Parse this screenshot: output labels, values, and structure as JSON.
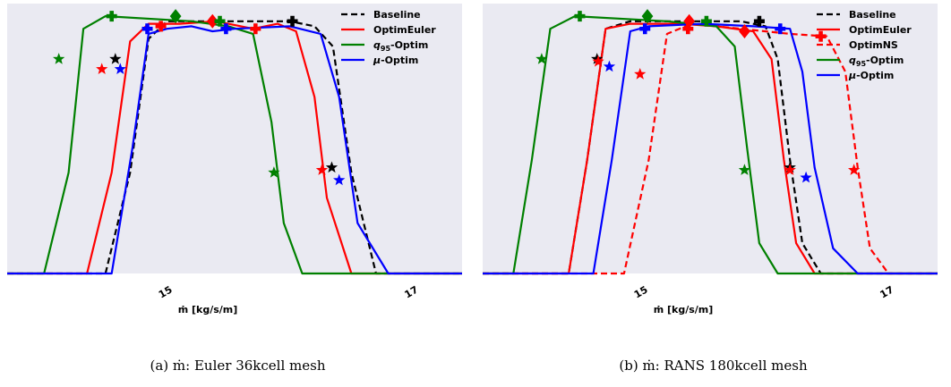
{
  "chart_data": [
    {
      "type": "line",
      "xlabel": "ṁ [kg/s/m]",
      "xticks": [
        "15",
        "17"
      ],
      "xtick_values": [
        15,
        17
      ],
      "xlim": [
        13.7,
        17.4
      ],
      "ylim": [
        0,
        1.07
      ],
      "grid": false,
      "legend_position": "top-right",
      "caption": "(a) ṁ: Euler 36kcell mesh",
      "series": [
        {
          "name": "Baseline",
          "color": "#000000",
          "dash": true,
          "low": 14.7,
          "high": 16.5,
          "width": 0.07,
          "x": [
            13.7,
            14.5,
            14.7,
            14.85,
            15.0,
            15.25,
            15.5,
            15.75,
            16.0,
            16.2,
            16.35,
            16.5,
            16.7,
            17.4
          ],
          "y": [
            0.0,
            0.0,
            0.4,
            0.93,
            1.0,
            1.0,
            1.0,
            1.0,
            1.0,
            0.98,
            0.9,
            0.4,
            0.0,
            0.0
          ],
          "marker_stars": [
            [
              14.58,
              0.85
            ],
            [
              16.34,
              0.42
            ]
          ],
          "marker_plus": [
            [
              16.02,
              1.0
            ]
          ],
          "marker_diamond": []
        },
        {
          "name": "OptimEuler",
          "color": "#ff0000",
          "dash": false,
          "x": [
            13.7,
            14.35,
            14.55,
            14.7,
            14.85,
            15.1,
            15.4,
            15.7,
            15.9,
            16.05,
            16.2,
            16.3,
            16.5,
            17.4
          ],
          "y": [
            0.0,
            0.0,
            0.4,
            0.92,
            0.99,
            0.99,
            1.0,
            0.97,
            0.99,
            0.96,
            0.7,
            0.3,
            0.0,
            0.0
          ],
          "marker_stars": [
            [
              14.47,
              0.81
            ],
            [
              16.26,
              0.41
            ]
          ],
          "marker_plus": [
            [
              14.95,
              0.98
            ],
            [
              15.72,
              0.97
            ]
          ],
          "marker_diamond": [
            [
              15.37,
              1.0
            ]
          ]
        },
        {
          "name": "q95-Optim",
          "color": "#008000",
          "dash": false,
          "x": [
            13.7,
            14.0,
            14.2,
            14.32,
            14.5,
            15.2,
            15.5,
            15.7,
            15.85,
            15.95,
            16.1,
            17.4
          ],
          "y": [
            0.0,
            0.0,
            0.4,
            0.97,
            1.02,
            1.0,
            0.98,
            0.95,
            0.6,
            0.2,
            0.0,
            0.0
          ],
          "marker_stars": [
            [
              14.12,
              0.85
            ],
            [
              15.87,
              0.4
            ]
          ],
          "marker_plus": [
            [
              14.55,
              1.02
            ],
            [
              15.43,
              1.0
            ]
          ],
          "marker_diamond": [
            [
              15.07,
              1.02
            ]
          ]
        },
        {
          "name": "μ-Optim",
          "color": "#0000ff",
          "dash": false,
          "x": [
            13.7,
            14.55,
            14.72,
            14.85,
            15.0,
            15.2,
            15.37,
            15.55,
            16.0,
            16.25,
            16.4,
            16.55,
            16.8,
            17.4
          ],
          "y": [
            0.0,
            0.0,
            0.5,
            0.95,
            0.97,
            0.98,
            0.96,
            0.97,
            0.98,
            0.95,
            0.7,
            0.2,
            0.0,
            0.0
          ],
          "marker_stars": [
            [
              14.62,
              0.81
            ],
            [
              16.4,
              0.37
            ]
          ],
          "marker_plus": [
            [
              14.84,
              0.97
            ],
            [
              15.48,
              0.97
            ]
          ],
          "marker_diamond": []
        }
      ]
    },
    {
      "type": "line",
      "xlabel": "ṁ [kg/s/m]",
      "xticks": [
        "15",
        "17"
      ],
      "xtick_values": [
        15,
        17
      ],
      "xlim": [
        13.7,
        17.4
      ],
      "ylim": [
        0,
        1.07
      ],
      "grid": false,
      "legend_position": "top-right",
      "caption": "(b) ṁ: RANS 180kcell mesh",
      "series": [
        {
          "name": "Baseline",
          "color": "#000000",
          "dash": true,
          "x": [
            13.7,
            14.4,
            14.55,
            14.7,
            14.9,
            15.5,
            15.8,
            16.0,
            16.1,
            16.2,
            16.3,
            16.45,
            17.4
          ],
          "y": [
            0.0,
            0.0,
            0.45,
            0.97,
            1.0,
            1.0,
            1.0,
            0.98,
            0.85,
            0.45,
            0.12,
            0.0,
            0.0
          ],
          "marker_stars": [
            [
              14.63,
              0.85
            ],
            [
              16.2,
              0.42
            ]
          ],
          "marker_plus": [
            [
              15.95,
              1.0
            ]
          ],
          "marker_diamond": []
        },
        {
          "name": "OptimEuler",
          "color": "#ff0000",
          "dash": false,
          "x": [
            13.7,
            14.4,
            14.55,
            14.7,
            14.9,
            15.3,
            15.6,
            15.9,
            16.05,
            16.15,
            16.25,
            16.4,
            17.4
          ],
          "y": [
            0.0,
            0.0,
            0.45,
            0.97,
            0.99,
            0.99,
            0.98,
            0.96,
            0.85,
            0.45,
            0.12,
            0.0,
            0.0
          ],
          "marker_stars": [
            [
              14.64,
              0.84
            ],
            [
              16.2,
              0.41
            ]
          ],
          "marker_plus": [
            [
              15.37,
              0.97
            ]
          ],
          "marker_diamond": [
            [
              15.38,
              1.0
            ],
            [
              15.83,
              0.96
            ]
          ]
        },
        {
          "name": "OptimNS",
          "color": "#ff0000",
          "dash": "dashed",
          "x": [
            13.7,
            14.85,
            15.05,
            15.2,
            15.4,
            15.8,
            16.2,
            16.5,
            16.65,
            16.75,
            16.85,
            17.0,
            17.4
          ],
          "y": [
            0.0,
            0.0,
            0.45,
            0.95,
            0.99,
            0.97,
            0.95,
            0.94,
            0.8,
            0.42,
            0.1,
            0.0,
            0.0
          ],
          "marker_stars": [
            [
              14.98,
              0.79
            ],
            [
              16.72,
              0.41
            ]
          ],
          "marker_plus": [
            [
              16.45,
              0.94
            ]
          ],
          "marker_diamond": []
        },
        {
          "name": "q95-Optim",
          "color": "#008000",
          "dash": false,
          "x": [
            13.7,
            13.95,
            14.1,
            14.25,
            14.45,
            15.2,
            15.6,
            15.75,
            15.85,
            15.95,
            16.1,
            17.4
          ],
          "y": [
            0.0,
            0.0,
            0.45,
            0.97,
            1.02,
            1.0,
            0.98,
            0.9,
            0.5,
            0.12,
            0.0,
            0.0
          ],
          "marker_stars": [
            [
              14.18,
              0.85
            ],
            [
              15.83,
              0.41
            ]
          ],
          "marker_plus": [
            [
              14.49,
              1.02
            ],
            [
              15.52,
              1.0
            ]
          ],
          "marker_diamond": [
            [
              15.04,
              1.02
            ]
          ]
        },
        {
          "name": "μ-Optim",
          "color": "#0000ff",
          "dash": false,
          "x": [
            13.7,
            14.6,
            14.75,
            14.9,
            15.05,
            15.5,
            15.9,
            16.2,
            16.3,
            16.4,
            16.55,
            16.75,
            17.4
          ],
          "y": [
            0.0,
            0.0,
            0.45,
            0.96,
            0.98,
            0.99,
            0.98,
            0.97,
            0.8,
            0.42,
            0.1,
            0.0,
            0.0
          ],
          "marker_stars": [
            [
              14.73,
              0.82
            ],
            [
              16.33,
              0.38
            ]
          ],
          "marker_plus": [
            [
              15.02,
              0.97
            ],
            [
              16.12,
              0.97
            ]
          ],
          "marker_diamond": []
        }
      ]
    }
  ]
}
